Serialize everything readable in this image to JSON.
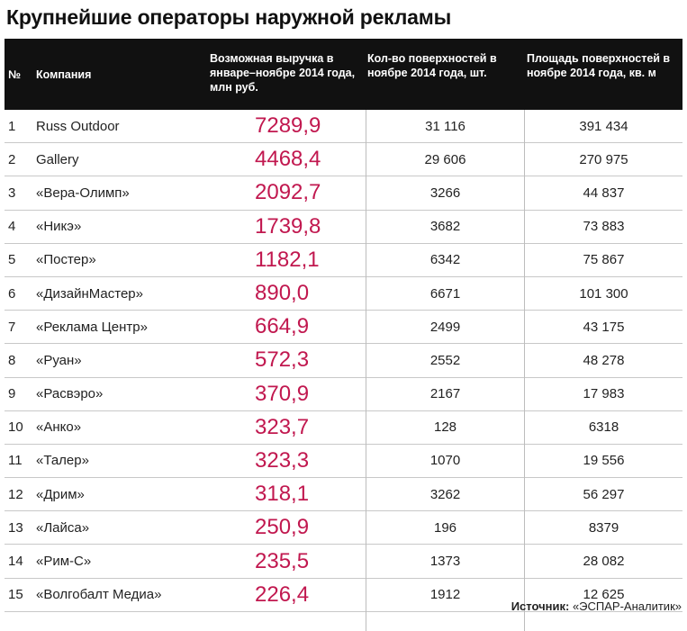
{
  "title": "Крупнейшие операторы наружной рекламы",
  "headers": {
    "num": "№",
    "company": "Компания",
    "revenue": "Возможная выручка в январе–ноябре 2014 года, млн руб.",
    "count": "Кол-во поверхностей в ноябре 2014 года, шт.",
    "area": "Площадь поверхностей в ноябре 2014 года, кв. м"
  },
  "rows": [
    {
      "num": "1",
      "company": "Russ Outdoor",
      "revenue": "7289,9",
      "count": "31 116",
      "area": "391 434"
    },
    {
      "num": "2",
      "company": "Gallery",
      "revenue": "4468,4",
      "count": "29 606",
      "area": "270 975"
    },
    {
      "num": "3",
      "company": "«Вера-Олимп»",
      "revenue": "2092,7",
      "count": "3266",
      "area": "44 837"
    },
    {
      "num": "4",
      "company": "«Никэ»",
      "revenue": "1739,8",
      "count": "3682",
      "area": "73 883"
    },
    {
      "num": "5",
      "company": "«Постер»",
      "revenue": "1182,1",
      "count": "6342",
      "area": "75 867"
    },
    {
      "num": "6",
      "company": "«ДизайнМастер»",
      "revenue": "890,0",
      "count": "6671",
      "area": "101 300"
    },
    {
      "num": "7",
      "company": "«Реклама Центр»",
      "revenue": "664,9",
      "count": "2499",
      "area": "43 175"
    },
    {
      "num": "8",
      "company": "«Руан»",
      "revenue": "572,3",
      "count": "2552",
      "area": "48 278"
    },
    {
      "num": "9",
      "company": "«Расвэро»",
      "revenue": "370,9",
      "count": "2167",
      "area": "17 983"
    },
    {
      "num": "10",
      "company": "«Анко»",
      "revenue": "323,7",
      "count": "128",
      "area": "6318"
    },
    {
      "num": "11",
      "company": "«Талер»",
      "revenue": "323,3",
      "count": "1070",
      "area": "19 556"
    },
    {
      "num": "12",
      "company": "«Дрим»",
      "revenue": "318,1",
      "count": "3262",
      "area": "56 297"
    },
    {
      "num": "13",
      "company": "«Лайса»",
      "revenue": "250,9",
      "count": "196",
      "area": "8379"
    },
    {
      "num": "14",
      "company": "«Рим-С»",
      "revenue": "235,5",
      "count": "1373",
      "area": "28 082"
    },
    {
      "num": "15",
      "company": "«Волгобалт Медиа»",
      "revenue": "226,4",
      "count": "1912",
      "area": "12 625"
    }
  ],
  "source": {
    "label": "Источник:",
    "value": "«ЭСПАР-Аналитик»"
  },
  "colors": {
    "header_bg": "#111111",
    "revenue_text": "#c1184f",
    "row_border": "#c8c8c8"
  }
}
